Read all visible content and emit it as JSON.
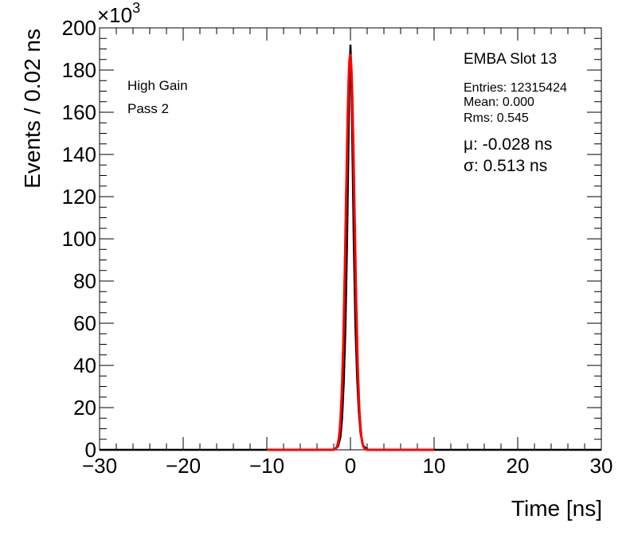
{
  "chart_data": {
    "type": "line",
    "xlabel": "Time [ns]",
    "ylabel": "Events / 0.02 ns",
    "y_multiplier_label": "×10",
    "y_multiplier_exponent": "3",
    "xlim": [
      -30,
      30
    ],
    "ylim": [
      0,
      200
    ],
    "x_ticks": [
      -30,
      -20,
      -10,
      0,
      10,
      20,
      30
    ],
    "x_tick_labels": [
      "−30",
      "−20",
      "−10",
      "0",
      "10",
      "20",
      "30"
    ],
    "y_ticks": [
      0,
      20,
      40,
      60,
      80,
      100,
      120,
      140,
      160,
      180,
      200
    ],
    "y_tick_labels": [
      "0",
      "20",
      "40",
      "60",
      "80",
      "100",
      "120",
      "140",
      "160",
      "180",
      "200"
    ],
    "grid": false,
    "series": [
      {
        "color": "#000000",
        "kind": "histogram",
        "x": [
          -2.0,
          -1.5,
          -1.2,
          -1.0,
          -0.8,
          -0.6,
          -0.4,
          -0.2,
          -0.1,
          0.0,
          0.1,
          0.2,
          0.4,
          0.6,
          0.8,
          1.0,
          1.2,
          1.5,
          2.0
        ],
        "y": [
          0.1,
          1.5,
          6,
          15,
          32,
          58,
          100,
          155,
          178,
          192,
          178,
          152,
          98,
          58,
          34,
          18,
          8,
          2,
          0.3
        ]
      },
      {
        "color": "#ff0000",
        "kind": "gaussian-fit",
        "mu": -0.028,
        "sigma": 0.513,
        "amplitude": 187,
        "range": [
          -10,
          10
        ]
      }
    ]
  },
  "annotations": {
    "gain": "High Gain",
    "pass": "Pass 2",
    "title": "EMBA Slot 13",
    "entries": "Entries: 12315424",
    "mean": "Mean: 0.000",
    "rms": "Rms: 0.545",
    "mu": "μ: -0.028 ns",
    "sigma": "σ: 0.513 ns"
  }
}
